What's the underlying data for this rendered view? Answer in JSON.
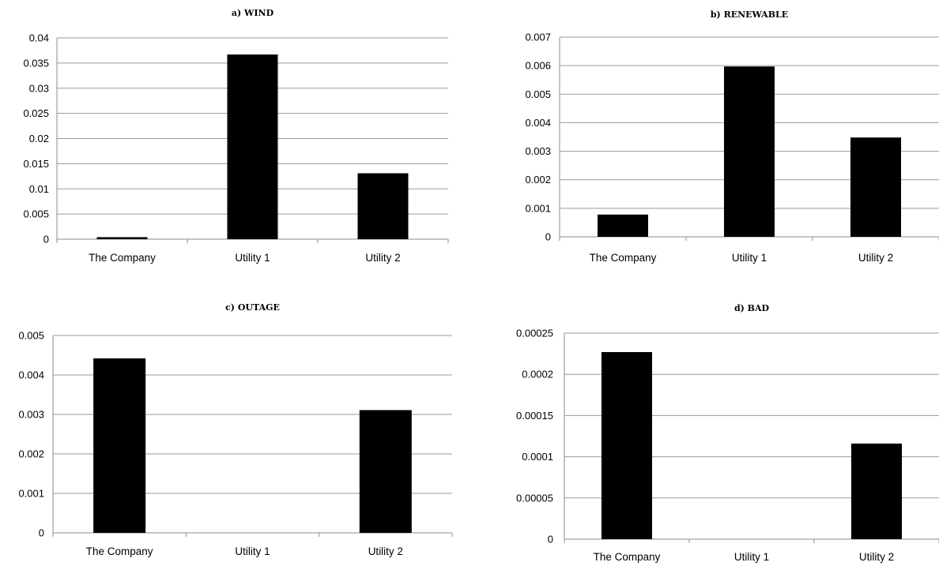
{
  "chart_data": [
    {
      "type": "bar",
      "title": "a) WIND",
      "categories": [
        "The Company",
        "Utility 1",
        "Utility 2"
      ],
      "values": [
        0.0004,
        0.0367,
        0.0131
      ],
      "yticks": [
        "0",
        "0.005",
        "0.01",
        "0.015",
        "0.02",
        "0.025",
        "0.03",
        "0.035",
        "0.04"
      ],
      "ylim": [
        0,
        0.04
      ],
      "grid": true
    },
    {
      "type": "bar",
      "title": "b) RENEWABLE",
      "categories": [
        "The Company",
        "Utility 1",
        "Utility 2"
      ],
      "values": [
        0.00078,
        0.00597,
        0.00348
      ],
      "yticks": [
        "0",
        "0.001",
        "0.002",
        "0.003",
        "0.004",
        "0.005",
        "0.006",
        "0.007"
      ],
      "ylim": [
        0,
        0.007
      ],
      "grid": true
    },
    {
      "type": "bar",
      "title": "c) OUTAGE",
      "categories": [
        "The Company",
        "Utility 1",
        "Utility 2"
      ],
      "values": [
        0.00442,
        0,
        0.00311
      ],
      "yticks": [
        "0",
        "0.001",
        "0.002",
        "0.003",
        "0.004",
        "0.005"
      ],
      "ylim": [
        0,
        0.005
      ],
      "grid": true
    },
    {
      "type": "bar",
      "title": "d) BAD",
      "categories": [
        "The Company",
        "Utility 1",
        "Utility 2"
      ],
      "values": [
        0.000227,
        0,
        0.000116
      ],
      "yticks": [
        "0",
        "0.00005",
        "0.0001",
        "0.00015",
        "0.0002",
        "0.00025"
      ],
      "ylim": [
        0,
        0.00025
      ],
      "grid": true
    }
  ]
}
